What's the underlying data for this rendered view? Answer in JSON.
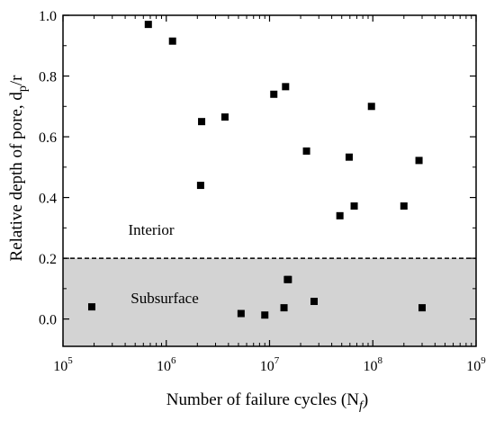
{
  "chart_data": {
    "type": "scatter",
    "title": "",
    "xlabel": "Number of failure cycles (N",
    "xlabel_sub": "f",
    "xlabel_close": ")",
    "ylabel": "Relative depth of pore, d",
    "ylabel_sub": "p",
    "ylabel_tail": "/r",
    "xscale": "log",
    "xlim": [
      100000,
      1000000000
    ],
    "ylim": [
      -0.09,
      1.0
    ],
    "x_ticks": [
      {
        "value": 100000,
        "base": "10",
        "exp": "5"
      },
      {
        "value": 1000000,
        "base": "10",
        "exp": "6"
      },
      {
        "value": 10000000,
        "base": "10",
        "exp": "7"
      },
      {
        "value": 100000000,
        "base": "10",
        "exp": "8"
      },
      {
        "value": 1000000000,
        "base": "10",
        "exp": "9"
      }
    ],
    "y_ticks": [
      {
        "value": 0.0,
        "label": "0.0"
      },
      {
        "value": 0.2,
        "label": "0.2"
      },
      {
        "value": 0.4,
        "label": "0.4"
      },
      {
        "value": 0.6,
        "label": "0.6"
      },
      {
        "value": 0.8,
        "label": "0.8"
      },
      {
        "value": 1.0,
        "label": "1.0"
      }
    ],
    "threshold": 0.2,
    "grid": false,
    "legend": "none",
    "colors": {
      "marker": "#000000",
      "subsurface_fill": "#d3d3d3",
      "threshold_line": "#000000"
    },
    "region_labels": {
      "interior": "Interior",
      "subsurface": "Subsurface"
    },
    "series": [
      {
        "marker": "square",
        "x": [
          190000,
          670000,
          1150000,
          2150000,
          2200000,
          3700000,
          5300000,
          9000000,
          11000000,
          13800000,
          14300000,
          14900000,
          15200000,
          22800000,
          27000000,
          48000000,
          59000000,
          66000000,
          97000000,
          200000000,
          280000000,
          300000000
        ],
        "y": [
          0.04,
          0.97,
          0.915,
          0.44,
          0.65,
          0.665,
          0.018,
          0.013,
          0.74,
          0.037,
          0.765,
          0.13,
          0.13,
          0.553,
          0.058,
          0.34,
          0.533,
          0.372,
          0.7,
          0.372,
          0.522,
          0.037
        ]
      }
    ]
  }
}
